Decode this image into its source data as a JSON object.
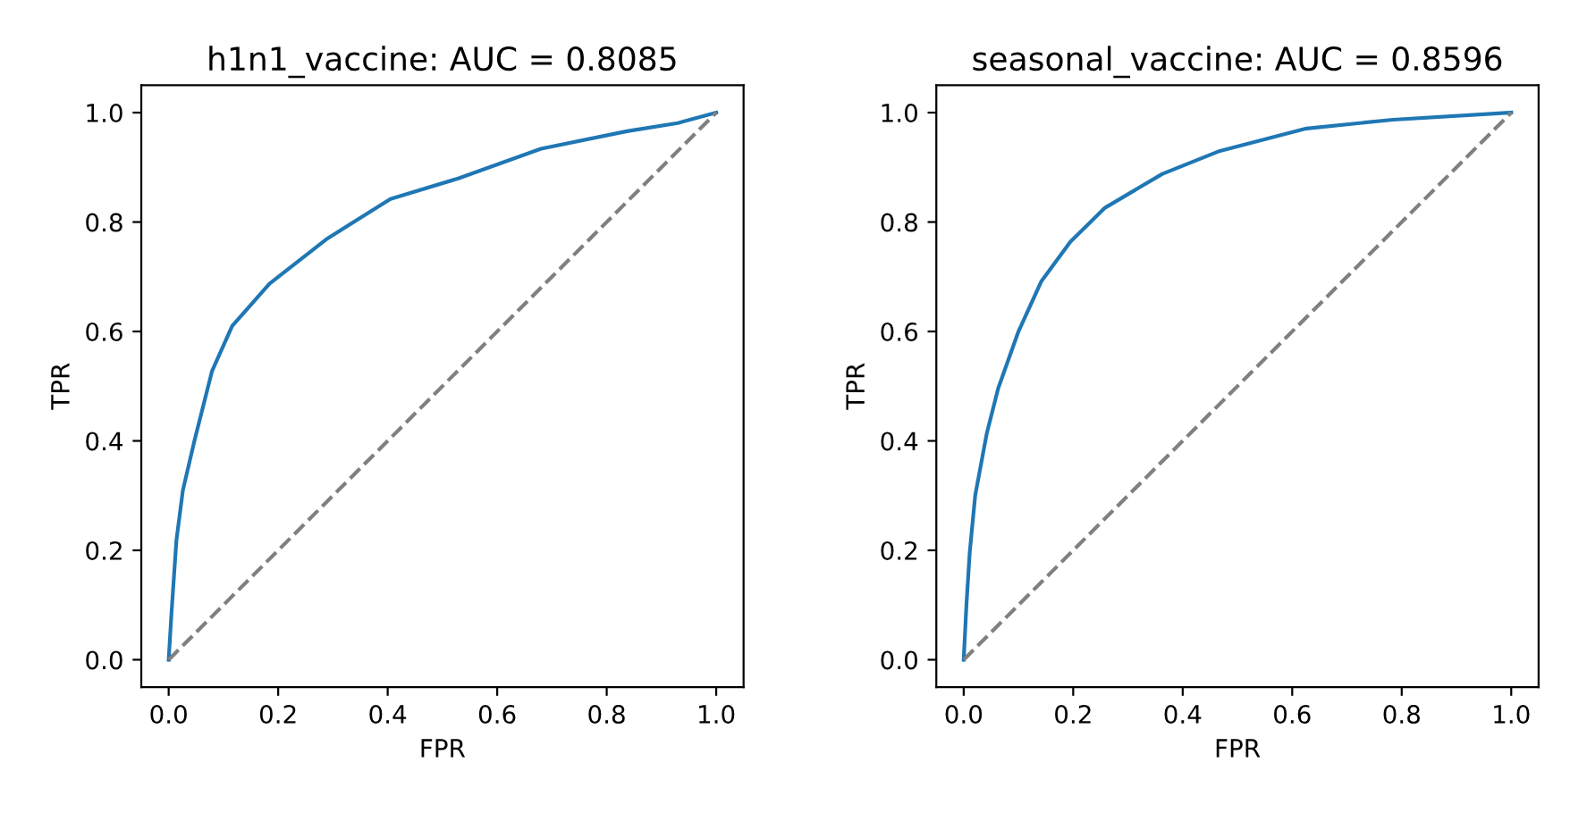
{
  "chart_data": [
    {
      "type": "line",
      "title": "h1n1_vaccine: AUC = 0.8085",
      "xlabel": "FPR",
      "ylabel": "TPR",
      "xlim": [
        -0.05,
        1.05
      ],
      "ylim": [
        -0.05,
        1.05
      ],
      "xticks": [
        {
          "value": 0,
          "label": "0.0"
        },
        {
          "value": 0.2,
          "label": "0.2"
        },
        {
          "value": 0.4,
          "label": "0.4"
        },
        {
          "value": 0.6,
          "label": "0.6"
        },
        {
          "value": 0.8,
          "label": "0.8"
        },
        {
          "value": 1,
          "label": "1.0"
        }
      ],
      "yticks": [
        {
          "value": 0,
          "label": "0.0"
        },
        {
          "value": 0.2,
          "label": "0.2"
        },
        {
          "value": 0.4,
          "label": "0.4"
        },
        {
          "value": 0.6,
          "label": "0.6"
        },
        {
          "value": 0.8,
          "label": "0.8"
        },
        {
          "value": 1,
          "label": "1.0"
        }
      ],
      "grid": false,
      "series": [
        {
          "color": "#1f77b4",
          "line_style": "solid",
          "x": [
            0,
            0.005,
            0.014,
            0.026,
            0.047,
            0.079,
            0.116,
            0.184,
            0.29,
            0.405,
            0.53,
            0.68,
            0.837,
            0.93,
            1
          ],
          "values": [
            0,
            0.083,
            0.217,
            0.31,
            0.4,
            0.527,
            0.61,
            0.687,
            0.77,
            0.842,
            0.88,
            0.934,
            0.966,
            0.981,
            1
          ]
        },
        {
          "color": "#808080",
          "line_style": "dashed",
          "x": [
            0,
            1
          ],
          "values": [
            0,
            1
          ]
        }
      ]
    },
    {
      "type": "line",
      "title": "seasonal_vaccine: AUC = 0.8596",
      "xlabel": "FPR",
      "ylabel": "TPR",
      "xlim": [
        -0.05,
        1.05
      ],
      "ylim": [
        -0.05,
        1.05
      ],
      "xticks": [
        {
          "value": 0,
          "label": "0.0"
        },
        {
          "value": 0.2,
          "label": "0.2"
        },
        {
          "value": 0.4,
          "label": "0.4"
        },
        {
          "value": 0.6,
          "label": "0.6"
        },
        {
          "value": 0.8,
          "label": "0.8"
        },
        {
          "value": 1,
          "label": "1.0"
        }
      ],
      "yticks": [
        {
          "value": 0,
          "label": "0.0"
        },
        {
          "value": 0.2,
          "label": "0.2"
        },
        {
          "value": 0.4,
          "label": "0.4"
        },
        {
          "value": 0.6,
          "label": "0.6"
        },
        {
          "value": 0.8,
          "label": "0.8"
        },
        {
          "value": 1,
          "label": "1.0"
        }
      ],
      "grid": false,
      "series": [
        {
          "color": "#1f77b4",
          "line_style": "solid",
          "x": [
            0,
            0.005,
            0.011,
            0.021,
            0.042,
            0.063,
            0.1,
            0.142,
            0.195,
            0.258,
            0.363,
            0.468,
            0.626,
            0.784,
            1
          ],
          "values": [
            0,
            0.1,
            0.196,
            0.3,
            0.413,
            0.496,
            0.6,
            0.692,
            0.764,
            0.826,
            0.888,
            0.93,
            0.971,
            0.987,
            1
          ]
        },
        {
          "color": "#808080",
          "line_style": "dashed",
          "x": [
            0,
            1
          ],
          "values": [
            0,
            1
          ]
        }
      ]
    }
  ]
}
